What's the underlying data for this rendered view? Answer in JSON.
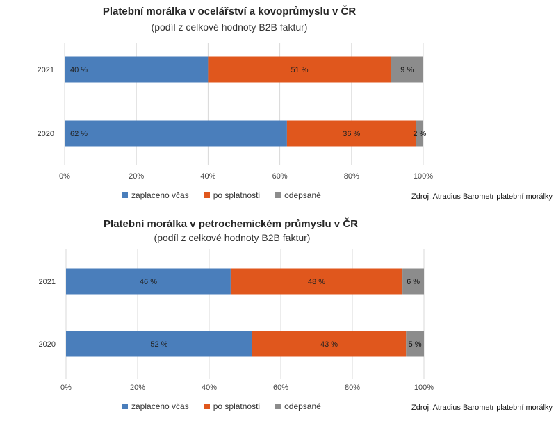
{
  "chart_data": [
    {
      "type": "bar",
      "orientation": "horizontal",
      "stacked": true,
      "title": "Platební morálka v ocelářství a kovoprůmyslu v ČR",
      "subtitle": "(podíl z celkové hodnoty  B2B faktur)",
      "categories": [
        "2021",
        "2020"
      ],
      "series": [
        {
          "name": "zaplaceno včas",
          "values": [
            40,
            62
          ],
          "labels": [
            "40 %",
            "62 %"
          ]
        },
        {
          "name": "po splatnosti",
          "values": [
            51,
            36
          ],
          "labels": [
            "51 %",
            "36 %"
          ]
        },
        {
          "name": "odepsané",
          "values": [
            9,
            2
          ],
          "labels": [
            "9 %",
            "2 %"
          ]
        }
      ],
      "xlim": [
        0,
        100
      ],
      "xticks": [
        "0%",
        "20%",
        "40%",
        "60%",
        "80%",
        "100%"
      ],
      "grid": true,
      "legend_position": "bottom",
      "source": "Zdroj: Atradius Barometr platební morálky"
    },
    {
      "type": "bar",
      "orientation": "horizontal",
      "stacked": true,
      "title": "Platební morálka v petrochemickém průmyslu v ČR",
      "subtitle": "(podíl z celkové hodnoty  B2B faktur)",
      "categories": [
        "2021",
        "2020"
      ],
      "series": [
        {
          "name": "zaplaceno včas",
          "values": [
            46,
            52
          ],
          "labels": [
            "46 %",
            "52 %"
          ]
        },
        {
          "name": "po splatnosti",
          "values": [
            48,
            43
          ],
          "labels": [
            "48 %",
            "43 %"
          ]
        },
        {
          "name": "odepsané",
          "values": [
            6,
            5
          ],
          "labels": [
            "6 %",
            "5 %"
          ]
        }
      ],
      "xlim": [
        0,
        100
      ],
      "xticks": [
        "0%",
        "20%",
        "40%",
        "60%",
        "80%",
        "100%"
      ],
      "grid": true,
      "legend_position": "bottom",
      "source": "Zdroj: Atradius Barometr platební morálky"
    }
  ],
  "colors": {
    "zaplaceno_vcas": "#4a7ebb",
    "po_splatnosti": "#e0571d",
    "odepsane": "#8c8c8c",
    "grid": "#d9d9d9",
    "text": "#333333"
  }
}
